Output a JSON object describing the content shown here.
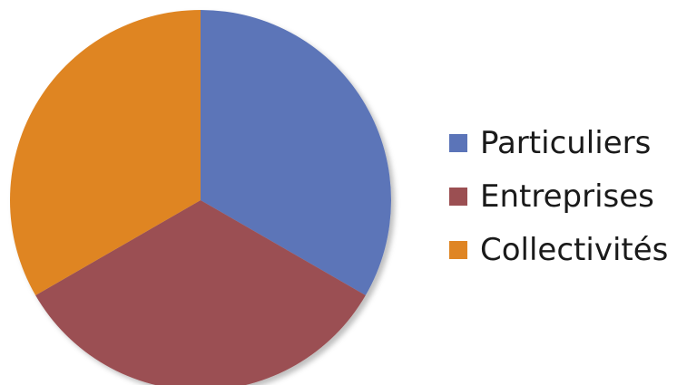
{
  "chart_data": {
    "type": "pie",
    "series": [
      {
        "name": "Particuliers",
        "value": 33.33,
        "color": "#5b74b8"
      },
      {
        "name": "Entreprises",
        "value": 33.33,
        "color": "#9b4f52"
      },
      {
        "name": "Collectivités",
        "value": 33.33,
        "color": "#df8524"
      }
    ],
    "legend_position": "right"
  }
}
